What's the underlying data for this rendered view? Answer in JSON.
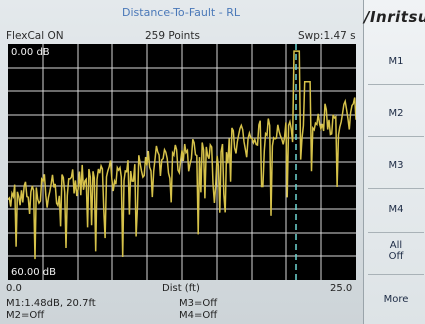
{
  "header": {
    "title": "Distance-To-Fault - RL",
    "flexcal": "FlexCal ON",
    "points": "259 Points",
    "sweep": "Swp:1.47 s"
  },
  "plot": {
    "top_label": "0.00 dB",
    "bottom_label": "60.00 dB",
    "x_start": "0.0",
    "x_axis_label": "Dist (ft)",
    "x_end": "25.0",
    "background": "#000000",
    "grid_color": "#d8d8d8",
    "trace_color": "#d6c24a",
    "marker_line_color": "#6fd6d2"
  },
  "markers": {
    "m1": "M1:1.48dB, 20.7ft",
    "m2": "M2=Off",
    "m3": "M3=Off",
    "m4": "M4=Off"
  },
  "softkeys": {
    "brand": "/Inritsu",
    "m1": "M1",
    "m2": "M2",
    "m3": "M3",
    "m4": "M4",
    "all_off": "All\nOff",
    "more": "More"
  }
}
